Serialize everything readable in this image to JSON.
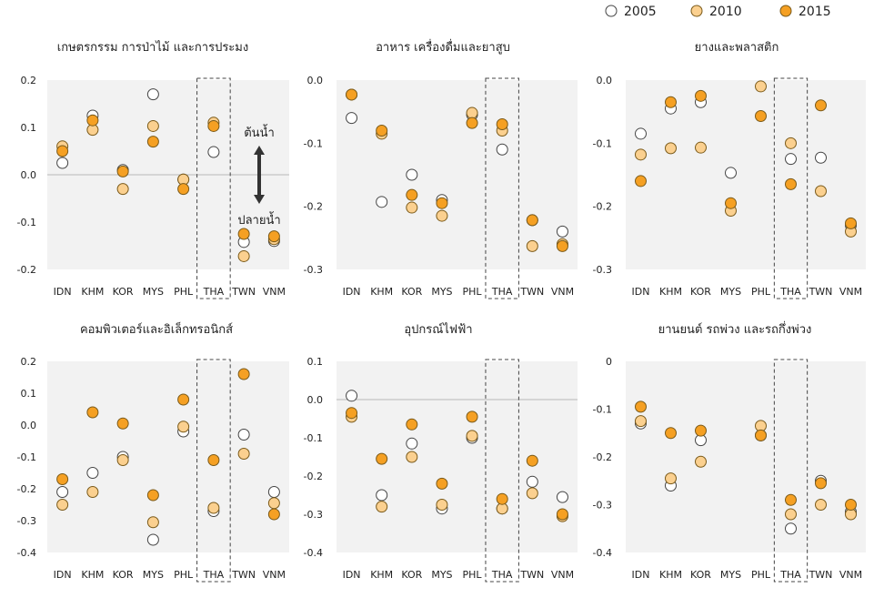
{
  "legend": {
    "entries": [
      {
        "name": "2005",
        "color": "#ffffff"
      },
      {
        "name": "2010",
        "color": "#fbd08f"
      },
      {
        "name": "2015",
        "color": "#f5a023"
      }
    ]
  },
  "chart_data": [
    {
      "type": "scatter",
      "title": "เกษตรกรรม การป่าไม้ และการประมง",
      "categories": [
        "IDN",
        "KHM",
        "KOR",
        "MYS",
        "PHL",
        "THA",
        "TWN",
        "VNM"
      ],
      "ylim": [
        -0.2,
        0.2
      ],
      "yticks": [
        "0.2",
        "0.1",
        "0.0",
        "-0.1",
        "-0.2"
      ],
      "ytick_values": [
        0.2,
        0.1,
        0.0,
        -0.1,
        -0.2
      ],
      "zero_line": true,
      "highlight_category": "THA",
      "annotations": {
        "up": "ต้นน้ำ",
        "down": "ปลายน้ำ"
      },
      "series": [
        {
          "name": "2005",
          "values": [
            0.025,
            0.125,
            0.01,
            0.17,
            -0.01,
            0.048,
            -0.142,
            -0.14
          ]
        },
        {
          "name": "2010",
          "values": [
            0.06,
            0.095,
            -0.03,
            0.103,
            -0.01,
            0.11,
            -0.172,
            -0.136
          ]
        },
        {
          "name": "2015",
          "values": [
            0.05,
            0.115,
            0.007,
            0.07,
            -0.03,
            0.103,
            -0.125,
            -0.13
          ]
        }
      ]
    },
    {
      "type": "scatter",
      "title": "อาหาร เครื่องดื่มและยาสูบ",
      "categories": [
        "IDN",
        "KHM",
        "KOR",
        "MYS",
        "PHL",
        "THA",
        "TWN",
        "VNM"
      ],
      "ylim": [
        -0.3,
        0.0
      ],
      "yticks": [
        "0.0",
        "-0.1",
        "-0.2",
        "-0.3"
      ],
      "ytick_values": [
        0.0,
        -0.1,
        -0.2,
        -0.3
      ],
      "zero_line": false,
      "highlight_category": "THA",
      "series": [
        {
          "name": "2005",
          "values": [
            -0.06,
            -0.193,
            -0.15,
            -0.19,
            -0.055,
            -0.11,
            -0.222,
            -0.24
          ]
        },
        {
          "name": "2010",
          "values": [
            -0.023,
            -0.085,
            -0.202,
            -0.215,
            -0.052,
            -0.08,
            -0.263,
            -0.26
          ]
        },
        {
          "name": "2015",
          "values": [
            -0.023,
            -0.08,
            -0.182,
            -0.195,
            -0.068,
            -0.07,
            -0.222,
            -0.263
          ]
        }
      ]
    },
    {
      "type": "scatter",
      "title": "ยางและพลาสติก",
      "categories": [
        "IDN",
        "KHM",
        "KOR",
        "MYS",
        "PHL",
        "THA",
        "TWN",
        "VNM"
      ],
      "ylim": [
        -0.3,
        0.0
      ],
      "yticks": [
        "0.0",
        "-0.1",
        "-0.2",
        "-0.3"
      ],
      "ytick_values": [
        0.0,
        -0.1,
        -0.2,
        -0.3
      ],
      "zero_line": false,
      "highlight_category": "THA",
      "series": [
        {
          "name": "2005",
          "values": [
            -0.085,
            -0.045,
            -0.035,
            -0.147,
            null,
            -0.125,
            -0.123,
            -0.23
          ]
        },
        {
          "name": "2010",
          "values": [
            -0.118,
            -0.108,
            -0.107,
            -0.207,
            -0.01,
            -0.1,
            -0.176,
            -0.24
          ]
        },
        {
          "name": "2015",
          "values": [
            -0.16,
            -0.035,
            -0.025,
            -0.195,
            -0.057,
            -0.165,
            -0.04,
            -0.227
          ]
        }
      ]
    },
    {
      "type": "scatter",
      "title": "คอมพิวเตอร์และอิเล็กทรอนิกส์",
      "categories": [
        "IDN",
        "KHM",
        "KOR",
        "MYS",
        "PHL",
        "THA",
        "TWN",
        "VNM"
      ],
      "ylim": [
        -0.4,
        0.2
      ],
      "yticks": [
        "0.2",
        "0.1",
        "0.0",
        "-0.1",
        "-0.2",
        "-0.3",
        "-0.4"
      ],
      "ytick_values": [
        0.2,
        0.1,
        0.0,
        -0.1,
        -0.2,
        -0.3,
        -0.4
      ],
      "zero_line": false,
      "highlight_category": "THA",
      "series": [
        {
          "name": "2005",
          "values": [
            -0.21,
            -0.15,
            -0.1,
            -0.36,
            -0.02,
            -0.27,
            -0.03,
            -0.21
          ]
        },
        {
          "name": "2010",
          "values": [
            -0.25,
            -0.21,
            -0.11,
            -0.305,
            -0.005,
            -0.26,
            -0.09,
            -0.245
          ]
        },
        {
          "name": "2015",
          "values": [
            -0.17,
            0.04,
            0.005,
            -0.22,
            0.08,
            -0.11,
            0.16,
            -0.28
          ]
        }
      ]
    },
    {
      "type": "scatter",
      "title": "อุปกรณ์ไฟฟ้า",
      "categories": [
        "IDN",
        "KHM",
        "KOR",
        "MYS",
        "PHL",
        "THA",
        "TWN",
        "VNM"
      ],
      "ylim": [
        -0.4,
        0.1
      ],
      "yticks": [
        "0.1",
        "0.0",
        "-0.1",
        "-0.2",
        "-0.3",
        "-0.4"
      ],
      "ytick_values": [
        0.1,
        0.0,
        -0.1,
        -0.2,
        -0.3,
        -0.4
      ],
      "zero_line": true,
      "highlight_category": "THA",
      "series": [
        {
          "name": "2005",
          "values": [
            0.01,
            -0.25,
            -0.115,
            -0.285,
            -0.1,
            -0.285,
            -0.215,
            -0.255
          ]
        },
        {
          "name": "2010",
          "values": [
            -0.045,
            -0.28,
            -0.15,
            -0.275,
            -0.095,
            -0.285,
            -0.245,
            -0.305
          ]
        },
        {
          "name": "2015",
          "values": [
            -0.035,
            -0.155,
            -0.065,
            -0.22,
            -0.045,
            -0.26,
            -0.16,
            -0.3
          ]
        }
      ]
    },
    {
      "type": "scatter",
      "title": "ยานยนต์ รถพ่วง และรถกึ่งพ่วง",
      "categories": [
        "IDN",
        "KHM",
        "KOR",
        "MYS",
        "PHL",
        "THA",
        "TWN",
        "VNM"
      ],
      "ylim": [
        -0.4,
        0.0
      ],
      "yticks": [
        "0",
        "-0.1",
        "-0.2",
        "-0.3",
        "-0.4"
      ],
      "ytick_values": [
        0.0,
        -0.1,
        -0.2,
        -0.3,
        -0.4
      ],
      "zero_line": false,
      "highlight_category": "THA",
      "series": [
        {
          "name": "2005",
          "values": [
            -0.13,
            -0.26,
            -0.165,
            null,
            -0.155,
            -0.35,
            -0.25,
            -0.315
          ]
        },
        {
          "name": "2010",
          "values": [
            -0.125,
            -0.245,
            -0.21,
            null,
            -0.135,
            -0.32,
            -0.3,
            -0.32
          ]
        },
        {
          "name": "2015",
          "values": [
            -0.095,
            -0.15,
            -0.145,
            null,
            -0.155,
            -0.29,
            -0.255,
            -0.3
          ]
        }
      ]
    }
  ]
}
